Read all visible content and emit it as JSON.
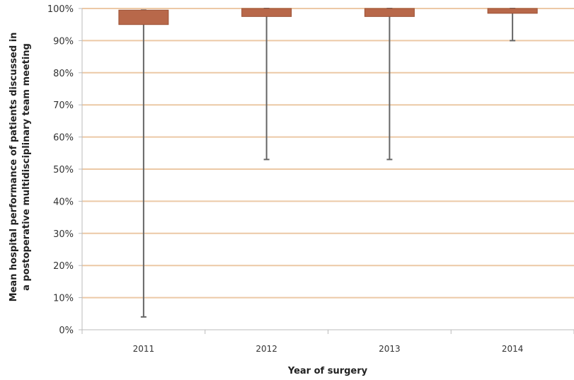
{
  "chart_data": {
    "type": "box",
    "title": "",
    "xlabel": "Year of surgery",
    "ylabel_lines": [
      "Mean hospital performance of patients discussed in",
      "a postoperative multidisciplinary team meeting"
    ],
    "ylim": [
      0,
      100
    ],
    "yticks": [
      "0%",
      "10%",
      "20%",
      "30%",
      "40%",
      "50%",
      "60%",
      "70%",
      "80%",
      "90%",
      "100%"
    ],
    "grid": true,
    "categories": [
      "2011",
      "2012",
      "2013",
      "2014"
    ],
    "boxes": [
      {
        "category": "2011",
        "min": 4,
        "q1": 95,
        "q3": 99.5,
        "max": 99.5
      },
      {
        "category": "2012",
        "min": 53,
        "q1": 97.5,
        "q3": 100,
        "max": 100
      },
      {
        "category": "2013",
        "min": 53,
        "q1": 97.5,
        "q3": 100,
        "max": 100
      },
      {
        "category": "2014",
        "min": 90,
        "q1": 98.5,
        "q3": 100,
        "max": 100
      }
    ],
    "colors": {
      "box": "#b8684a",
      "box_edge": "#9c5236",
      "whisker": "#666666",
      "grid": "#ecc9a6",
      "axis": "#bbbbbb"
    }
  }
}
